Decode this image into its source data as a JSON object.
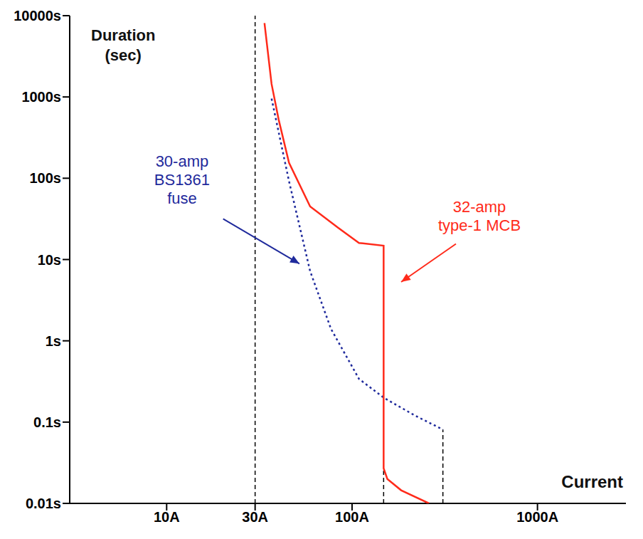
{
  "chart_data": {
    "type": "line",
    "x_label": "Current",
    "y_label": "Duration\n(sec)",
    "log": true,
    "grid": false,
    "xlim": [
      3,
      3000
    ],
    "ylim": [
      0.01,
      10000
    ],
    "xticks": [
      {
        "value": 10,
        "label": "10A"
      },
      {
        "value": 30,
        "label": "30A"
      },
      {
        "value": 100,
        "label": "100A"
      },
      {
        "value": 1000,
        "label": "1000A"
      }
    ],
    "yticks": [
      {
        "value": 0.01,
        "label": "0.01s"
      },
      {
        "value": 0.1,
        "label": "0.1s"
      },
      {
        "value": 1,
        "label": "1s"
      },
      {
        "value": 10,
        "label": "10s"
      },
      {
        "value": 100,
        "label": "100s"
      },
      {
        "value": 1000,
        "label": "1000s"
      },
      {
        "value": 10000,
        "label": "10000s"
      }
    ],
    "series": [
      {
        "name": "30-amp\nBS1361\nfuse",
        "color": "#1f2a9c",
        "line_style": "dotted",
        "x": [
          36.8,
          45.7,
          59.4,
          77,
          109,
          148,
          219,
          309
        ],
        "values": [
          955,
          92,
          7.2,
          1.4,
          0.34,
          0.2,
          0.12,
          0.081
        ],
        "annotate_at": [
          52,
          8.9
        ]
      },
      {
        "name": "32-amp\ntype-1 MCB",
        "color": "#ff2a1a",
        "line_style": "solid",
        "x": [
          33.7,
          36.8,
          40.2,
          45.7,
          59.4,
          84,
          109,
          148,
          148,
          155,
          184,
          260
        ],
        "values": [
          8100,
          1445,
          525,
          155,
          45,
          24.6,
          16,
          14.8,
          0.027,
          0.02,
          0.0145,
          0.01
        ],
        "annotate_at": [
          184,
          5.3
        ]
      }
    ],
    "reference_lines": [
      {
        "x": 30,
        "y": [
          0.01,
          10000
        ]
      },
      {
        "x": 148,
        "y": [
          0.01,
          0.027
        ]
      },
      {
        "x": 309,
        "y": [
          0.01,
          0.081
        ]
      }
    ]
  }
}
